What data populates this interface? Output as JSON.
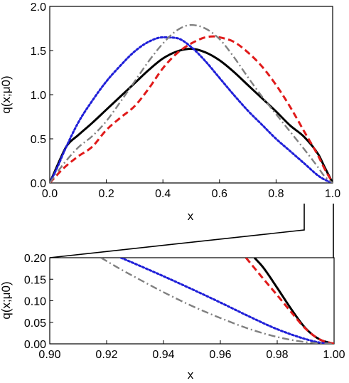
{
  "chart_data": [
    {
      "type": "line",
      "xlabel": "x",
      "ylabel": "q(x;μ0)",
      "xlim": [
        0.0,
        1.0
      ],
      "ylim": [
        0.0,
        2.0
      ],
      "xticks": [
        "0.0",
        "0.2",
        "0.4",
        "0.6",
        "0.8",
        "1.0"
      ],
      "yticks": [
        "0.0",
        "0.5",
        "1.0",
        "1.5",
        "2.0"
      ],
      "grid": false,
      "legend": "none",
      "series": [
        {
          "color": "#000000",
          "style": "solid",
          "x": [
            0.0,
            0.03,
            0.06,
            0.1,
            0.15,
            0.2,
            0.25,
            0.3,
            0.35,
            0.4,
            0.45,
            0.5,
            0.55,
            0.6,
            0.65,
            0.7,
            0.75,
            0.8,
            0.85,
            0.9,
            0.95,
            0.97,
            1.0
          ],
          "y": [
            0.0,
            0.22,
            0.42,
            0.54,
            0.68,
            0.83,
            0.98,
            1.13,
            1.28,
            1.41,
            1.49,
            1.52,
            1.48,
            1.39,
            1.26,
            1.11,
            0.96,
            0.81,
            0.65,
            0.52,
            0.32,
            0.19,
            0.0
          ]
        },
        {
          "color": "#1f1fd8",
          "style": "dotted",
          "x": [
            0.0,
            0.03,
            0.05,
            0.1,
            0.15,
            0.2,
            0.25,
            0.3,
            0.35,
            0.4,
            0.45,
            0.5,
            0.55,
            0.6,
            0.65,
            0.7,
            0.75,
            0.8,
            0.85,
            0.9,
            0.95,
            0.97,
            1.0
          ],
          "y": [
            0.0,
            0.2,
            0.35,
            0.68,
            0.93,
            1.15,
            1.33,
            1.49,
            1.6,
            1.65,
            1.64,
            1.54,
            1.38,
            1.19,
            1.0,
            0.82,
            0.66,
            0.5,
            0.36,
            0.22,
            0.08,
            0.04,
            0.0
          ]
        },
        {
          "color": "#e01a1a",
          "style": "dashed",
          "x": [
            0.0,
            0.05,
            0.1,
            0.15,
            0.2,
            0.25,
            0.3,
            0.35,
            0.4,
            0.45,
            0.5,
            0.55,
            0.58,
            0.6,
            0.65,
            0.7,
            0.75,
            0.8,
            0.85,
            0.9,
            0.95,
            0.97,
            1.0
          ],
          "y": [
            0.0,
            0.17,
            0.3,
            0.41,
            0.6,
            0.74,
            0.87,
            1.07,
            1.3,
            1.47,
            1.58,
            1.65,
            1.66,
            1.65,
            1.6,
            1.48,
            1.32,
            1.11,
            0.86,
            0.58,
            0.3,
            0.17,
            0.0
          ]
        },
        {
          "color": "#808080",
          "style": "dashdot",
          "x": [
            0.0,
            0.05,
            0.1,
            0.15,
            0.2,
            0.25,
            0.3,
            0.35,
            0.4,
            0.45,
            0.5,
            0.55,
            0.6,
            0.65,
            0.7,
            0.75,
            0.8,
            0.85,
            0.9,
            0.95,
            0.97,
            1.0
          ],
          "y": [
            0.0,
            0.22,
            0.4,
            0.53,
            0.7,
            0.92,
            1.15,
            1.38,
            1.58,
            1.73,
            1.79,
            1.75,
            1.63,
            1.43,
            1.2,
            0.98,
            0.78,
            0.58,
            0.38,
            0.17,
            0.08,
            0.0
          ]
        }
      ]
    },
    {
      "type": "line",
      "xlabel": "x",
      "ylabel": "q(x;μ0)",
      "xlim": [
        0.9,
        1.0
      ],
      "ylim": [
        0.0,
        0.2
      ],
      "xticks": [
        "0.90",
        "0.92",
        "0.94",
        "0.96",
        "0.98",
        "1.00"
      ],
      "yticks": [
        "0.00",
        "0.05",
        "0.10",
        "0.15",
        "0.20"
      ],
      "grid": false,
      "legend": "none",
      "series": [
        {
          "color": "#000000",
          "style": "solid",
          "x": [
            0.972,
            0.975,
            0.98,
            0.985,
            0.99,
            0.995,
            1.0
          ],
          "y": [
            0.2,
            0.178,
            0.13,
            0.08,
            0.036,
            0.01,
            0.0
          ]
        },
        {
          "color": "#1f1fd8",
          "style": "dotted",
          "x": [
            0.925,
            0.93,
            0.94,
            0.95,
            0.96,
            0.97,
            0.98,
            0.99,
            0.995,
            1.0
          ],
          "y": [
            0.2,
            0.186,
            0.157,
            0.127,
            0.096,
            0.064,
            0.034,
            0.011,
            0.003,
            0.0
          ]
        },
        {
          "color": "#e01a1a",
          "style": "dashed",
          "x": [
            0.969,
            0.975,
            0.98,
            0.985,
            0.99,
            0.995,
            1.0
          ],
          "y": [
            0.2,
            0.152,
            0.113,
            0.073,
            0.035,
            0.01,
            0.0
          ]
        },
        {
          "color": "#808080",
          "style": "dashdot",
          "x": [
            0.918,
            0.925,
            0.93,
            0.94,
            0.95,
            0.96,
            0.97,
            0.98,
            0.99,
            1.0
          ],
          "y": [
            0.2,
            0.173,
            0.155,
            0.12,
            0.088,
            0.06,
            0.035,
            0.016,
            0.004,
            0.0
          ]
        }
      ]
    }
  ]
}
